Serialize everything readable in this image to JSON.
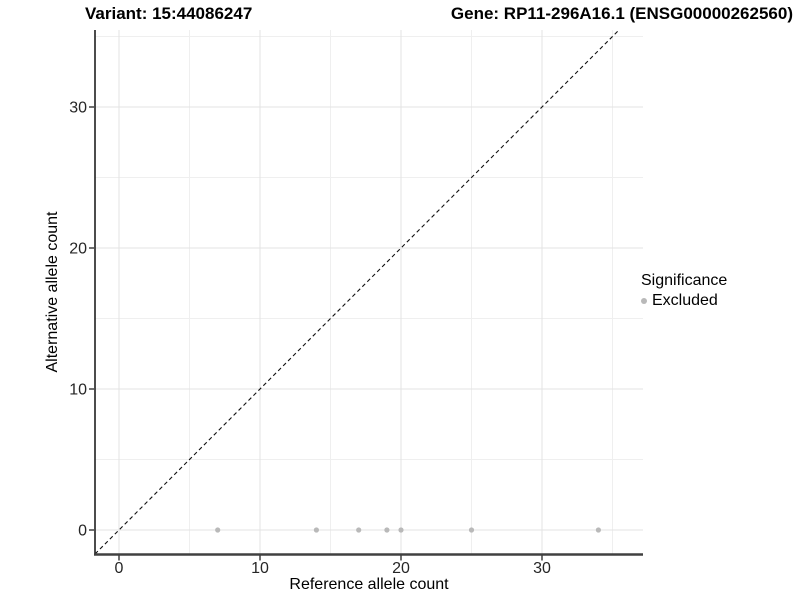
{
  "chart_data": {
    "type": "scatter",
    "titles": {
      "left": "Variant: 15:44086247",
      "right": "Gene: RP11-296A16.1 (ENSG00000262560)"
    },
    "xlabel": "Reference allele count",
    "ylabel": "Alternative allele count",
    "x_ticks": [
      0,
      10,
      20,
      30
    ],
    "y_ticks": [
      0,
      10,
      20,
      30
    ],
    "minor_ticks": [
      5,
      15,
      25,
      35
    ],
    "xlim": [
      -1.7,
      37.2
    ],
    "ylim": [
      -1.7,
      35.4
    ],
    "grid": {
      "major": true,
      "minor": true
    },
    "reference_line": {
      "type": "identity",
      "equation": "y = x",
      "style": "dashed"
    },
    "series": [
      {
        "name": "Excluded",
        "color": "#b9b9b9",
        "x": [
          7,
          14,
          17,
          19,
          20,
          25,
          34
        ],
        "y": [
          0,
          0,
          0,
          0,
          0,
          0,
          0
        ]
      }
    ],
    "legend": {
      "position": "right",
      "title": "Significance",
      "entries": [
        {
          "label": "Excluded",
          "color": "#b9b9b9",
          "marker": "circle"
        }
      ]
    },
    "colors": {
      "point": "#b9b9b9",
      "grid_major": "#e3e3e3",
      "grid_minor": "#efefef",
      "axis_line": "#333333",
      "dashed_line": "#111111",
      "tick_text": "#262626"
    }
  }
}
